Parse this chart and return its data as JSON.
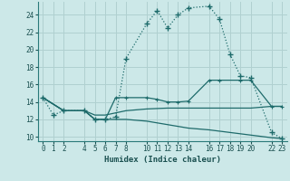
{
  "xlabel": "Humidex (Indice chaleur)",
  "xlim": [
    -0.5,
    23.5
  ],
  "ylim": [
    9.5,
    25.5
  ],
  "xticks": [
    0,
    1,
    2,
    4,
    5,
    6,
    7,
    8,
    10,
    11,
    12,
    13,
    14,
    16,
    17,
    18,
    19,
    20,
    22,
    23
  ],
  "yticks": [
    10,
    12,
    14,
    16,
    18,
    20,
    22,
    24
  ],
  "background_color": "#cce8e8",
  "grid_color": "#b0d0d0",
  "line_color": "#1e6b6b",
  "line1_x": [
    0,
    1,
    2,
    4,
    5,
    6,
    7,
    8,
    10,
    11,
    12,
    13,
    14,
    16,
    17,
    18,
    19,
    20,
    22,
    23
  ],
  "line1_y": [
    14.5,
    12.5,
    13.0,
    13.0,
    12.0,
    12.0,
    12.3,
    19.0,
    23.0,
    24.5,
    22.5,
    24.0,
    24.8,
    25.0,
    23.5,
    19.5,
    17.0,
    16.8,
    10.5,
    9.8
  ],
  "line2_x": [
    0,
    2,
    4,
    5,
    6,
    7,
    8,
    10,
    11,
    12,
    13,
    14,
    16,
    17,
    19,
    20,
    22,
    23
  ],
  "line2_y": [
    14.5,
    13.0,
    13.0,
    12.0,
    12.0,
    14.5,
    14.5,
    14.5,
    14.3,
    14.0,
    14.0,
    14.1,
    16.5,
    16.5,
    16.5,
    16.5,
    13.5,
    13.5
  ],
  "line3_x": [
    0,
    2,
    4,
    5,
    6,
    8,
    10,
    12,
    14,
    16,
    18,
    20,
    22,
    23
  ],
  "line3_y": [
    14.5,
    13.0,
    13.0,
    12.0,
    12.0,
    12.0,
    11.8,
    11.4,
    11.0,
    10.8,
    10.5,
    10.2,
    9.9,
    9.8
  ],
  "line4_x": [
    0,
    2,
    4,
    5,
    6,
    8,
    10,
    12,
    14,
    16,
    18,
    20,
    22,
    23
  ],
  "line4_y": [
    14.5,
    13.0,
    13.0,
    12.5,
    12.5,
    13.0,
    13.2,
    13.3,
    13.3,
    13.3,
    13.3,
    13.3,
    13.5,
    13.5
  ]
}
